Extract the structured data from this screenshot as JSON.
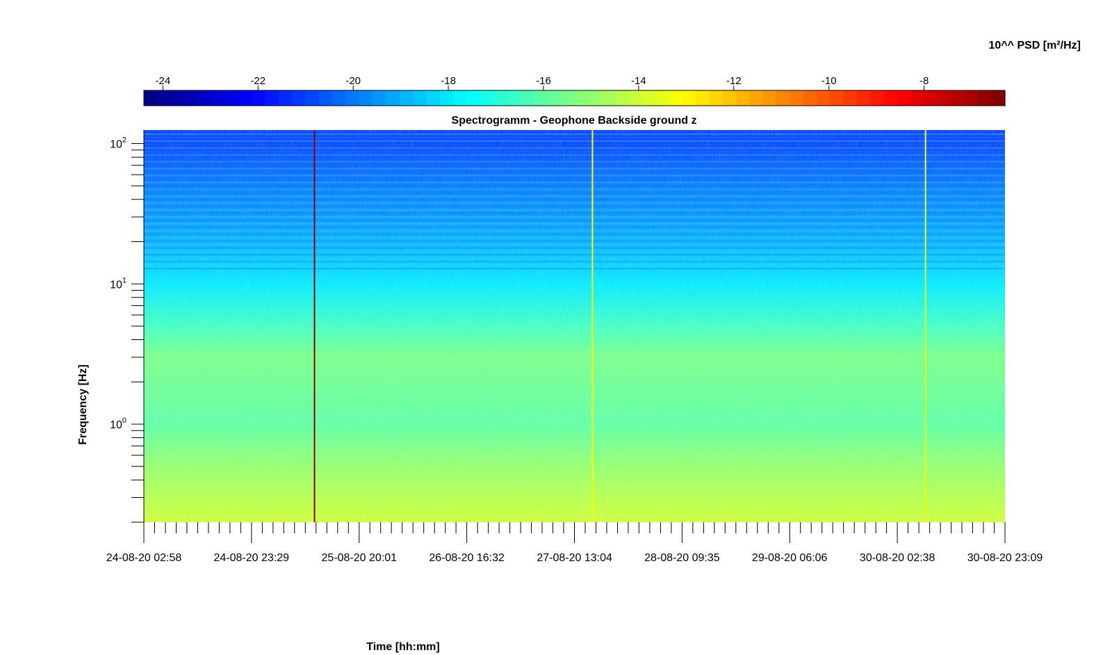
{
  "chart_data": {
    "type": "heatmap",
    "title": "Spectrogramm - Geophone Backside ground z",
    "xlabel": "Time [hh:mm]",
    "ylabel": "Frequency [Hz]",
    "x_scale": "time",
    "y_scale": "log",
    "ylim": [
      0.2,
      125
    ],
    "x_ticks": [
      "24-08-20 02:58",
      "24-08-20 23:29",
      "25-08-20 20:01",
      "26-08-20 16:32",
      "27-08-20 13:04",
      "28-08-20 09:35",
      "29-08-20 06:06",
      "30-08-20 02:38",
      "30-08-20 23:09"
    ],
    "y_ticks": [
      {
        "value": 1,
        "base": "10",
        "exp": "0"
      },
      {
        "value": 10,
        "base": "10",
        "exp": "1"
      },
      {
        "value": 100,
        "base": "10",
        "exp": "2"
      }
    ],
    "colorbar": {
      "label": "10^^ PSD [m²/Hz]",
      "range": [
        -24.4,
        -6.3
      ],
      "colormap": "jet",
      "ticks": [
        "-24",
        "-22",
        "-20",
        "-18",
        "-16",
        "-14",
        "-12",
        "-10",
        "-8"
      ]
    },
    "psd_profile_log10": [
      {
        "freq_hz": 100,
        "psd": -21.0
      },
      {
        "freq_hz": 50,
        "psd": -20.0
      },
      {
        "freq_hz": 20,
        "psd": -19.0
      },
      {
        "freq_hz": 10,
        "psd": -18.0
      },
      {
        "freq_hz": 5,
        "psd": -16.5
      },
      {
        "freq_hz": 3,
        "psd": -15.5
      },
      {
        "freq_hz": 1,
        "psd": -16.0
      },
      {
        "freq_hz": 0.5,
        "psd": -15.0
      },
      {
        "freq_hz": 0.2,
        "psd": -14.0
      }
    ],
    "events": [
      {
        "time": "25-08-20 11:30",
        "psd": -6.5
      },
      {
        "time": "27-08-20 16:30",
        "psd": -13.0
      },
      {
        "time": "30-08-20 08:00",
        "psd": -13.5
      }
    ]
  }
}
